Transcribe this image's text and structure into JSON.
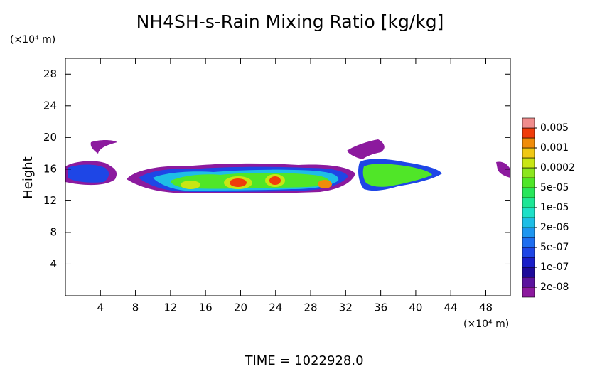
{
  "chart_data": {
    "type": "contour",
    "title": "NH4SH-s-Rain Mixing Ratio [kg/kg]",
    "y_label": "Height",
    "x_unit": "(×10⁴ m)",
    "y_unit": "(×10⁴ m)",
    "footer": "TIME = 1022928.0",
    "xlim": [
      0,
      50.8
    ],
    "ylim": [
      0,
      30
    ],
    "xticks": [
      4,
      8,
      12,
      16,
      20,
      24,
      28,
      32,
      36,
      40,
      44,
      48
    ],
    "yticks": [
      4,
      8,
      12,
      16,
      20,
      24,
      28
    ],
    "colorbar": {
      "colors": [
        "#8c1a9e",
        "#5c139e",
        "#1e0a9a",
        "#1a1ec8",
        "#1e46e6",
        "#1e6ef0",
        "#1e96f0",
        "#1ebee6",
        "#1ee0c8",
        "#1ee696",
        "#28e65a",
        "#50e628",
        "#8ce61e",
        "#c8e614",
        "#f0c814",
        "#f08c0a",
        "#f03c0a",
        "#f08c8c"
      ],
      "ticks": [
        0.005,
        0.001,
        0.0002,
        {
          "value": 5e-05,
          "label": "5e-05"
        },
        {
          "value": 1e-05,
          "label": "1e-05"
        },
        {
          "value": 2e-06,
          "label": "2e-06"
        },
        {
          "value": 5e-07,
          "label": "5e-07"
        },
        {
          "value": 1e-07,
          "label": "1e-07"
        },
        {
          "value": 2e-08,
          "label": "2e-08"
        }
      ]
    }
  }
}
